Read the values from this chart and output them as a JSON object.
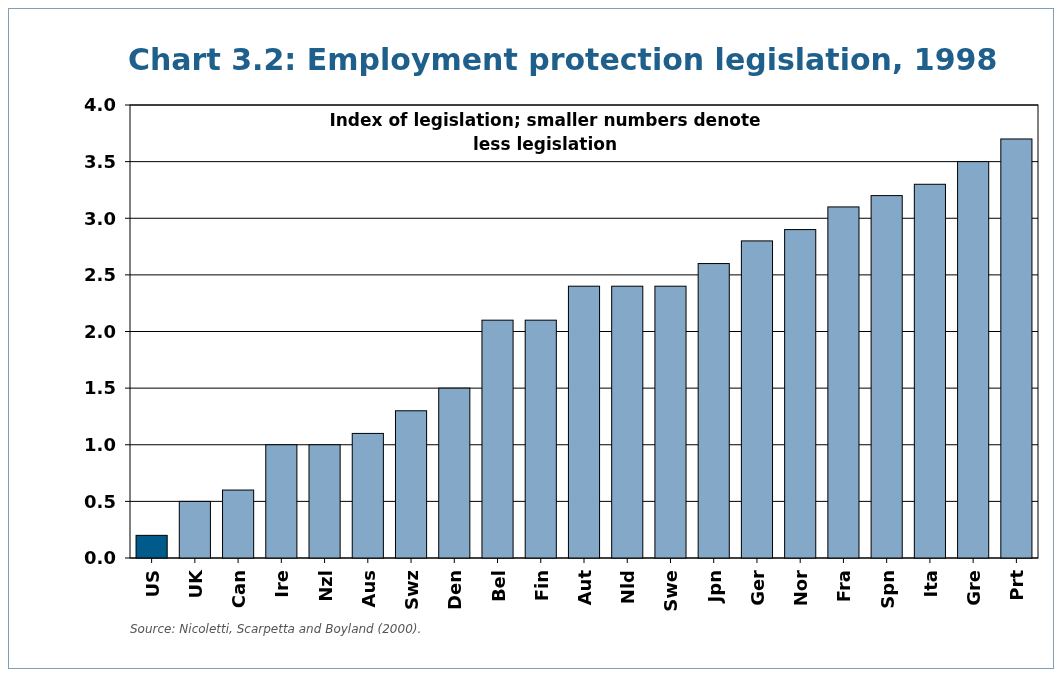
{
  "chart_data": {
    "type": "bar",
    "title": "Chart 3.2: Employment protection legislation, 1998",
    "categories": [
      "US",
      "UK",
      "Can",
      "Ire",
      "Nzl",
      "Aus",
      "Swz",
      "Den",
      "Bel",
      "Fin",
      "Aut",
      "Nld",
      "Swe",
      "Jpn",
      "Ger",
      "Nor",
      "Fra",
      "Spn",
      "Ita",
      "Gre",
      "Prt"
    ],
    "values": [
      0.2,
      0.5,
      0.6,
      1.0,
      1.0,
      1.1,
      1.3,
      1.5,
      2.1,
      2.1,
      2.4,
      2.4,
      2.4,
      2.6,
      2.8,
      2.9,
      3.1,
      3.2,
      3.3,
      3.5,
      3.7
    ],
    "colors": [
      "#005b8a",
      "#84a8c7",
      "#84a8c7",
      "#84a8c7",
      "#84a8c7",
      "#84a8c7",
      "#84a8c7",
      "#84a8c7",
      "#84a8c7",
      "#84a8c7",
      "#84a8c7",
      "#84a8c7",
      "#84a8c7",
      "#84a8c7",
      "#84a8c7",
      "#84a8c7",
      "#84a8c7",
      "#84a8c7",
      "#84a8c7",
      "#84a8c7",
      "#84a8c7"
    ],
    "ylim": [
      0,
      4
    ],
    "yticks": [
      {
        "value": 0,
        "label": "0.0"
      },
      {
        "value": 0.5,
        "label": "0.5"
      },
      {
        "value": 1,
        "label": "1.0"
      },
      {
        "value": 1.5,
        "label": "1.5"
      },
      {
        "value": 2,
        "label": "2.0"
      },
      {
        "value": 2.5,
        "label": "2.5"
      },
      {
        "value": 3,
        "label": "3.0"
      },
      {
        "value": 3.5,
        "label": "3.5"
      },
      {
        "value": 4,
        "label": "4.0"
      }
    ],
    "grid": "y",
    "annotations": [
      "Index of legislation; smaller numbers denote\nless legislation",
      "Source: Nicoletti, Scarpetta and Boyland (2000)."
    ]
  }
}
